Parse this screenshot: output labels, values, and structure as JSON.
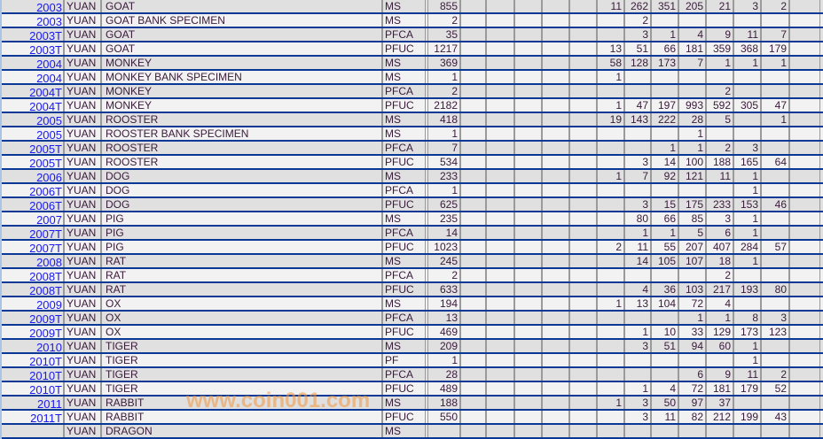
{
  "table": {
    "rows": [
      {
        "year": "2003",
        "denom": "YUAN",
        "name": "GOAT",
        "grade": "MS",
        "total": "855",
        "counts": [
          "11",
          "262",
          "351",
          "205",
          "21",
          "3",
          "2"
        ]
      },
      {
        "year": "2003",
        "denom": "YUAN",
        "name": "GOAT BANK SPECIMEN",
        "grade": "MS",
        "total": "2",
        "counts": [
          "",
          "2",
          "",
          "",
          "",
          "",
          ""
        ]
      },
      {
        "year": "2003T",
        "denom": "YUAN",
        "name": "GOAT",
        "grade": "PFCA",
        "total": "35",
        "counts": [
          "",
          "3",
          "1",
          "4",
          "9",
          "11",
          "7"
        ]
      },
      {
        "year": "2003T",
        "denom": "YUAN",
        "name": "GOAT",
        "grade": "PFUC",
        "total": "1217",
        "counts": [
          "13",
          "51",
          "66",
          "181",
          "359",
          "368",
          "179"
        ]
      },
      {
        "year": "2004",
        "denom": "YUAN",
        "name": "MONKEY",
        "grade": "MS",
        "total": "369",
        "counts": [
          "58",
          "128",
          "173",
          "7",
          "1",
          "1",
          "1"
        ]
      },
      {
        "year": "2004",
        "denom": "YUAN",
        "name": "MONKEY BANK SPECIMEN",
        "grade": "MS",
        "total": "1",
        "counts": [
          "1",
          "",
          "",
          "",
          "",
          "",
          ""
        ]
      },
      {
        "year": "2004T",
        "denom": "YUAN",
        "name": "MONKEY",
        "grade": "PFCA",
        "total": "2",
        "counts": [
          "",
          "",
          "",
          "",
          "2",
          "",
          ""
        ]
      },
      {
        "year": "2004T",
        "denom": "YUAN",
        "name": "MONKEY",
        "grade": "PFUC",
        "total": "2182",
        "counts": [
          "1",
          "47",
          "197",
          "993",
          "592",
          "305",
          "47"
        ]
      },
      {
        "year": "2005",
        "denom": "YUAN",
        "name": "ROOSTER",
        "grade": "MS",
        "total": "418",
        "counts": [
          "19",
          "143",
          "222",
          "28",
          "5",
          "",
          "1"
        ]
      },
      {
        "year": "2005",
        "denom": "YUAN",
        "name": "ROOSTER BANK SPECIMEN",
        "grade": "MS",
        "total": "1",
        "counts": [
          "",
          "",
          "",
          "1",
          "",
          "",
          ""
        ]
      },
      {
        "year": "2005T",
        "denom": "YUAN",
        "name": "ROOSTER",
        "grade": "PFCA",
        "total": "7",
        "counts": [
          "",
          "",
          "1",
          "1",
          "2",
          "3",
          ""
        ]
      },
      {
        "year": "2005T",
        "denom": "YUAN",
        "name": "ROOSTER",
        "grade": "PFUC",
        "total": "534",
        "counts": [
          "",
          "3",
          "14",
          "100",
          "188",
          "165",
          "64"
        ]
      },
      {
        "year": "2006",
        "denom": "YUAN",
        "name": "DOG",
        "grade": "MS",
        "total": "233",
        "counts": [
          "1",
          "7",
          "92",
          "121",
          "11",
          "1",
          ""
        ]
      },
      {
        "year": "2006T",
        "denom": "YUAN",
        "name": "DOG",
        "grade": "PFCA",
        "total": "1",
        "counts": [
          "",
          "",
          "",
          "",
          "",
          "1",
          ""
        ]
      },
      {
        "year": "2006T",
        "denom": "YUAN",
        "name": "DOG",
        "grade": "PFUC",
        "total": "625",
        "counts": [
          "",
          "3",
          "15",
          "175",
          "233",
          "153",
          "46"
        ]
      },
      {
        "year": "2007",
        "denom": "YUAN",
        "name": "PIG",
        "grade": "MS",
        "total": "235",
        "counts": [
          "",
          "80",
          "66",
          "85",
          "3",
          "1",
          ""
        ]
      },
      {
        "year": "2007T",
        "denom": "YUAN",
        "name": "PIG",
        "grade": "PFCA",
        "total": "14",
        "counts": [
          "",
          "1",
          "1",
          "5",
          "6",
          "1",
          ""
        ]
      },
      {
        "year": "2007T",
        "denom": "YUAN",
        "name": "PIG",
        "grade": "PFUC",
        "total": "1023",
        "counts": [
          "2",
          "11",
          "55",
          "207",
          "407",
          "284",
          "57"
        ]
      },
      {
        "year": "2008",
        "denom": "YUAN",
        "name": "RAT",
        "grade": "MS",
        "total": "245",
        "counts": [
          "",
          "14",
          "105",
          "107",
          "18",
          "1",
          ""
        ]
      },
      {
        "year": "2008T",
        "denom": "YUAN",
        "name": "RAT",
        "grade": "PFCA",
        "total": "2",
        "counts": [
          "",
          "",
          "",
          "",
          "2",
          "",
          ""
        ]
      },
      {
        "year": "2008T",
        "denom": "YUAN",
        "name": "RAT",
        "grade": "PFUC",
        "total": "633",
        "counts": [
          "",
          "4",
          "36",
          "103",
          "217",
          "193",
          "80"
        ]
      },
      {
        "year": "2009",
        "denom": "YUAN",
        "name": "OX",
        "grade": "MS",
        "total": "194",
        "counts": [
          "1",
          "13",
          "104",
          "72",
          "4",
          "",
          ""
        ]
      },
      {
        "year": "2009T",
        "denom": "YUAN",
        "name": "OX",
        "grade": "PFCA",
        "total": "13",
        "counts": [
          "",
          "",
          "",
          "1",
          "1",
          "8",
          "3"
        ]
      },
      {
        "year": "2009T",
        "denom": "YUAN",
        "name": "OX",
        "grade": "PFUC",
        "total": "469",
        "counts": [
          "",
          "1",
          "10",
          "33",
          "129",
          "173",
          "123"
        ]
      },
      {
        "year": "2010",
        "denom": "YUAN",
        "name": "TIGER",
        "grade": "MS",
        "total": "209",
        "counts": [
          "",
          "3",
          "51",
          "94",
          "60",
          "1",
          ""
        ]
      },
      {
        "year": "2010T",
        "denom": "YUAN",
        "name": "TIGER",
        "grade": "PF",
        "total": "1",
        "counts": [
          "",
          "",
          "",
          "",
          "",
          "1",
          ""
        ]
      },
      {
        "year": "2010T",
        "denom": "YUAN",
        "name": "TIGER",
        "grade": "PFCA",
        "total": "28",
        "counts": [
          "",
          "",
          "",
          "6",
          "9",
          "11",
          "2"
        ]
      },
      {
        "year": "2010T",
        "denom": "YUAN",
        "name": "TIGER",
        "grade": "PFUC",
        "total": "489",
        "counts": [
          "",
          "1",
          "4",
          "72",
          "181",
          "179",
          "52"
        ]
      },
      {
        "year": "2011",
        "denom": "YUAN",
        "name": "RABBIT",
        "grade": "MS",
        "total": "188",
        "counts": [
          "1",
          "3",
          "50",
          "97",
          "37",
          "",
          ""
        ]
      },
      {
        "year": "2011T",
        "denom": "YUAN",
        "name": "RABBIT",
        "grade": "PFUC",
        "total": "550",
        "counts": [
          "",
          "3",
          "11",
          "82",
          "212",
          "199",
          "43"
        ]
      },
      {
        "year": "",
        "denom": "YUAN",
        "name": "DRAGON",
        "grade": "MS",
        "total": "",
        "counts": [
          "",
          "",
          "",
          "",
          "",
          "",
          ""
        ]
      }
    ]
  },
  "watermark": "www.coin001.com",
  "colors": {
    "row_divider": "#0a3896",
    "row_odd": "#e0e0e0",
    "row_even": "#f2f2f2",
    "year_link": "#1a1aee",
    "watermark": "#f0963c"
  }
}
